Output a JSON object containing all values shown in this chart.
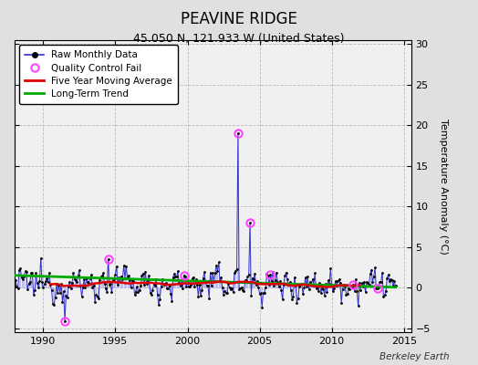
{
  "title": "PEAVINE RIDGE",
  "subtitle": "45.050 N, 121.933 W (United States)",
  "ylabel": "Temperature Anomaly (°C)",
  "watermark": "Berkeley Earth",
  "xlim": [
    1988.0,
    2015.5
  ],
  "ylim": [
    -5.5,
    30.5
  ],
  "yticks": [
    -5,
    0,
    5,
    10,
    15,
    20,
    25,
    30
  ],
  "xticks": [
    1990,
    1995,
    2000,
    2005,
    2010,
    2015
  ],
  "bg_color": "#e0e0e0",
  "plot_bg_color": "#f0f0f0",
  "raw_color": "#3333cc",
  "raw_fill_color": "#aaaaee",
  "ma_color": "#dd0000",
  "trend_color": "#00aa00",
  "qc_color": "#ff44ff",
  "seed": 12345
}
